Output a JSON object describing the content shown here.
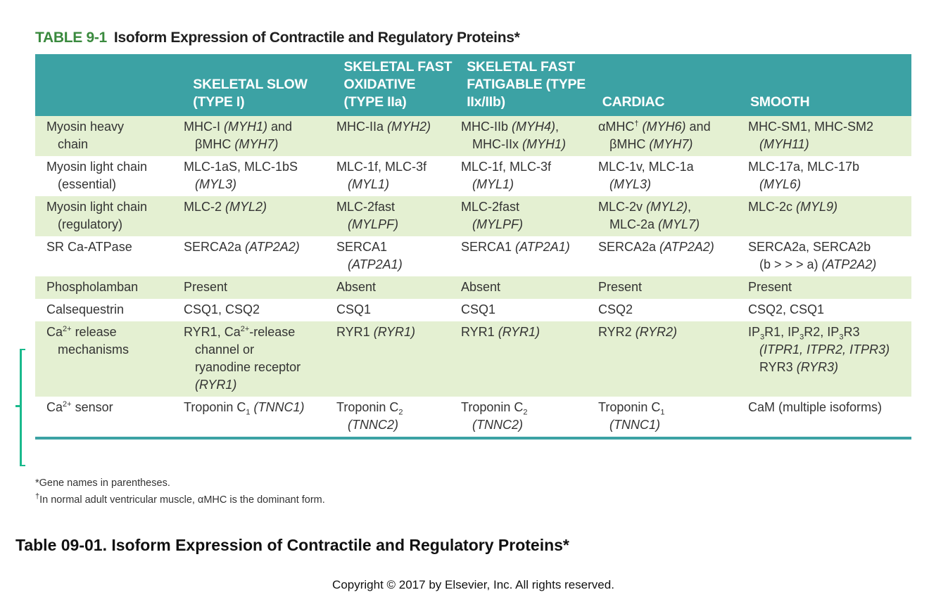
{
  "title": {
    "number": "TABLE 9-1",
    "text": "Isoform Expression of Contractile and Regulatory Proteins*"
  },
  "headers": [
    {
      "lines": []
    },
    {
      "lines": [
        "SKELETAL SLOW",
        "(TYPE I)"
      ]
    },
    {
      "lines": [
        "SKELETAL FAST",
        "OXIDATIVE",
        "(TYPE IIa)"
      ]
    },
    {
      "lines": [
        "SKELETAL FAST",
        "FATIGABLE (TYPE",
        "IIx/IIb)"
      ]
    },
    {
      "lines": [
        "CARDIAC"
      ]
    },
    {
      "lines": [
        "SMOOTH"
      ]
    }
  ],
  "rows": [
    {
      "shade": true,
      "cells": [
        [
          "Myosin heavy",
          "chain"
        ],
        [
          "MHC-I <i>(MYH1)</i> and",
          "βMHC <i>(MYH7)</i>"
        ],
        [
          "MHC-IIa <i>(MYH2)</i>"
        ],
        [
          "MHC-IIb <i>(MYH4)</i>,",
          "MHC-IIx <i>(MYH1)</i>"
        ],
        [
          "αMHC<sup>†</sup> <i>(MYH6)</i> and",
          "βMHC <i>(MYH7)</i>"
        ],
        [
          "MHC-SM1, MHC-SM2",
          "<i>(MYH11)</i>"
        ]
      ]
    },
    {
      "shade": false,
      "cells": [
        [
          "Myosin light chain",
          "(essential)"
        ],
        [
          "MLC-1aS, MLC-1bS",
          "<i>(MYL3)</i>"
        ],
        [
          "MLC-1f, MLC-3f",
          "<i>(MYL1)</i>"
        ],
        [
          "MLC-1f, MLC-3f",
          "<i>(MYL1)</i>"
        ],
        [
          "MLC-1v, MLC-1a",
          "<i>(MYL3)</i>"
        ],
        [
          "MLC-17a, MLC-17b",
          "<i>(MYL6)</i>"
        ]
      ]
    },
    {
      "shade": true,
      "cells": [
        [
          "Myosin light chain",
          "(regulatory)"
        ],
        [
          "MLC-2 <i>(MYL2)</i>"
        ],
        [
          "MLC-2fast",
          "<i>(MYLPF)</i>"
        ],
        [
          "MLC-2fast",
          "<i>(MYLPF)</i>"
        ],
        [
          "MLC-2v <i>(MYL2)</i>,",
          "MLC-2a <i>(MYL7)</i>"
        ],
        [
          "MLC-2c <i>(MYL9)</i>"
        ]
      ]
    },
    {
      "shade": false,
      "cells": [
        [
          "SR Ca-ATPase"
        ],
        [
          "SERCA2a <i>(ATP2A2)</i>"
        ],
        [
          "SERCA1",
          "<i>(ATP2A1)</i>"
        ],
        [
          "SERCA1 <i>(ATP2A1)</i>"
        ],
        [
          "SERCA2a <i>(ATP2A2)</i>"
        ],
        [
          "SERCA2a, SERCA2b",
          "(b &gt; &gt; &gt; a) <i>(ATP2A2)</i>"
        ]
      ]
    },
    {
      "shade": true,
      "cells": [
        [
          "Phospholamban"
        ],
        [
          "Present"
        ],
        [
          "Absent"
        ],
        [
          "Absent"
        ],
        [
          "Present"
        ],
        [
          "Present"
        ]
      ]
    },
    {
      "shade": false,
      "cells": [
        [
          "Calsequestrin"
        ],
        [
          "CSQ1, CSQ2"
        ],
        [
          "CSQ1"
        ],
        [
          "CSQ1"
        ],
        [
          "CSQ2"
        ],
        [
          "CSQ2, CSQ1"
        ]
      ]
    },
    {
      "shade": true,
      "cells": [
        [
          "Ca<sup>2+</sup> release",
          "mechanisms"
        ],
        [
          "RYR1, Ca<sup>2+</sup>-release",
          "channel or",
          "ryanodine receptor",
          "<i>(RYR1)</i>"
        ],
        [
          "RYR1 <i>(RYR1)</i>"
        ],
        [
          "RYR1 <i>(RYR1)</i>"
        ],
        [
          "RYR2 <i>(RYR2)</i>"
        ],
        [
          "IP<sub>3</sub>R1, IP<sub>3</sub>R2, IP<sub>3</sub>R3",
          "<i>(ITPR1, ITPR2, ITPR3)</i>",
          "RYR3 <i>(RYR3)</i>"
        ]
      ]
    },
    {
      "shade": false,
      "cells": [
        [
          "Ca<sup>2+</sup> sensor"
        ],
        [
          "Troponin C<sub>1</sub> <i>(TNNC1)</i>"
        ],
        [
          "Troponin C<sub>2</sub>",
          "<i>(TNNC2)</i>"
        ],
        [
          "Troponin C<sub>2</sub>",
          "<i>(TNNC2)</i>"
        ],
        [
          "Troponin C<sub>1</sub>",
          "<i>(TNNC1)</i>"
        ],
        [
          "CaM (multiple isoforms)"
        ]
      ]
    }
  ],
  "footnotes": [
    "*Gene names in parentheses.",
    "<sup>†</sup>In normal adult ventricular muscle, αMHC is the dominant form."
  ],
  "caption": "Table 09-01.  Isoform Expression of Contractile and Regulatory Proteins*",
  "copyright": "Copyright © 2017 by Elsevier, Inc. All rights reserved.",
  "colors": {
    "header_teal": "#3ca2a4",
    "row_green": "#e4f0d2",
    "title_green": "#3a8a3e",
    "bracket": "#19b98c"
  }
}
